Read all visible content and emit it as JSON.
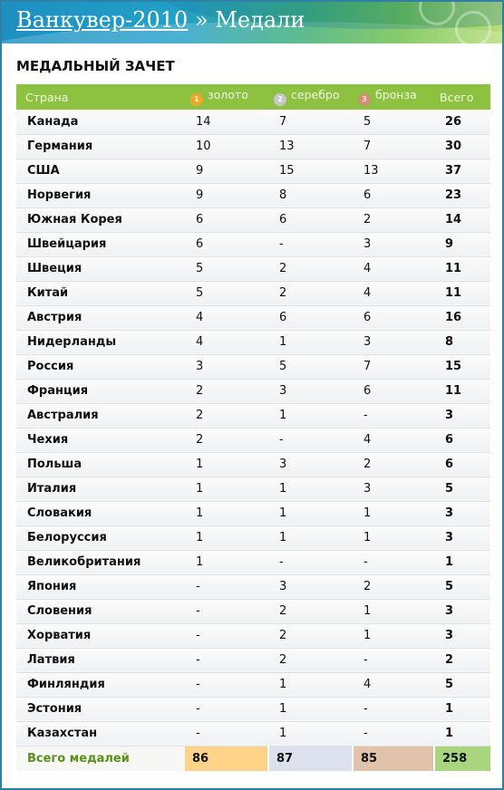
{
  "header": {
    "title_link": "Ванкувер-2010",
    "separator": "»",
    "title_rest": "Медали"
  },
  "panel": {
    "title": "МЕДАЛЬНЫЙ ЗАЧЕТ"
  },
  "columns": {
    "country": "Страна",
    "gold": "золото",
    "silver": "серебро",
    "bronze": "бронза",
    "total": "Всего",
    "gold_icon_label": "1",
    "silver_icon_label": "2",
    "bronze_icon_label": "3"
  },
  "colors": {
    "header_green": "#8cc23f",
    "gold": "#f1a62a",
    "silver": "#c7c7c7",
    "bronze": "#d28e74",
    "total_label": "#5a8f1a"
  },
  "rows": [
    {
      "country": "Канада",
      "gold": "14",
      "silver": "7",
      "bronze": "5",
      "total": "26"
    },
    {
      "country": "Германия",
      "gold": "10",
      "silver": "13",
      "bronze": "7",
      "total": "30"
    },
    {
      "country": "США",
      "gold": "9",
      "silver": "15",
      "bronze": "13",
      "total": "37"
    },
    {
      "country": "Норвегия",
      "gold": "9",
      "silver": "8",
      "bronze": "6",
      "total": "23"
    },
    {
      "country": "Южная Корея",
      "gold": "6",
      "silver": "6",
      "bronze": "2",
      "total": "14"
    },
    {
      "country": "Швейцария",
      "gold": "6",
      "silver": "-",
      "bronze": "3",
      "total": "9"
    },
    {
      "country": "Швеция",
      "gold": "5",
      "silver": "2",
      "bronze": "4",
      "total": "11"
    },
    {
      "country": "Китай",
      "gold": "5",
      "silver": "2",
      "bronze": "4",
      "total": "11"
    },
    {
      "country": "Австрия",
      "gold": "4",
      "silver": "6",
      "bronze": "6",
      "total": "16"
    },
    {
      "country": "Нидерланды",
      "gold": "4",
      "silver": "1",
      "bronze": "3",
      "total": "8"
    },
    {
      "country": "Россия",
      "gold": "3",
      "silver": "5",
      "bronze": "7",
      "total": "15"
    },
    {
      "country": "Франция",
      "gold": "2",
      "silver": "3",
      "bronze": "6",
      "total": "11"
    },
    {
      "country": "Австралия",
      "gold": "2",
      "silver": "1",
      "bronze": "-",
      "total": "3"
    },
    {
      "country": "Чехия",
      "gold": "2",
      "silver": "-",
      "bronze": "4",
      "total": "6"
    },
    {
      "country": "Польша",
      "gold": "1",
      "silver": "3",
      "bronze": "2",
      "total": "6"
    },
    {
      "country": "Италия",
      "gold": "1",
      "silver": "1",
      "bronze": "3",
      "total": "5"
    },
    {
      "country": "Словакия",
      "gold": "1",
      "silver": "1",
      "bronze": "1",
      "total": "3"
    },
    {
      "country": "Белоруссия",
      "gold": "1",
      "silver": "1",
      "bronze": "1",
      "total": "3"
    },
    {
      "country": "Великобритания",
      "gold": "1",
      "silver": "-",
      "bronze": "-",
      "total": "1"
    },
    {
      "country": "Япония",
      "gold": "-",
      "silver": "3",
      "bronze": "2",
      "total": "5"
    },
    {
      "country": "Словения",
      "gold": "-",
      "silver": "2",
      "bronze": "1",
      "total": "3"
    },
    {
      "country": "Хорватия",
      "gold": "-",
      "silver": "2",
      "bronze": "1",
      "total": "3"
    },
    {
      "country": "Латвия",
      "gold": "-",
      "silver": "2",
      "bronze": "-",
      "total": "2"
    },
    {
      "country": "Финляндия",
      "gold": "-",
      "silver": "1",
      "bronze": "4",
      "total": "5"
    },
    {
      "country": "Эстония",
      "gold": "-",
      "silver": "1",
      "bronze": "-",
      "total": "1"
    },
    {
      "country": "Казахстан",
      "gold": "-",
      "silver": "1",
      "bronze": "-",
      "total": "1"
    }
  ],
  "totals": {
    "label": "Всего медалей",
    "gold": "86",
    "silver": "87",
    "bronze": "85",
    "total": "258"
  }
}
